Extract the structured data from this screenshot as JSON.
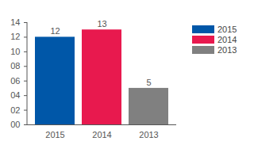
{
  "chart_data": {
    "type": "bar",
    "categories": [
      "2015",
      "2014",
      "2013"
    ],
    "values": [
      12,
      13,
      5
    ],
    "colors": [
      "#0057a8",
      "#e8194e",
      "#808080"
    ],
    "ylim": [
      0,
      14
    ],
    "yticks": [
      {
        "value": 0,
        "label": "00"
      },
      {
        "value": 2,
        "label": "02"
      },
      {
        "value": 4,
        "label": "04"
      },
      {
        "value": 6,
        "label": "06"
      },
      {
        "value": 8,
        "label": "08"
      },
      {
        "value": 10,
        "label": "10"
      },
      {
        "value": 12,
        "label": "12"
      },
      {
        "value": 14,
        "label": "14"
      }
    ],
    "grid": false,
    "legend": "top-right",
    "data_labels": true
  }
}
